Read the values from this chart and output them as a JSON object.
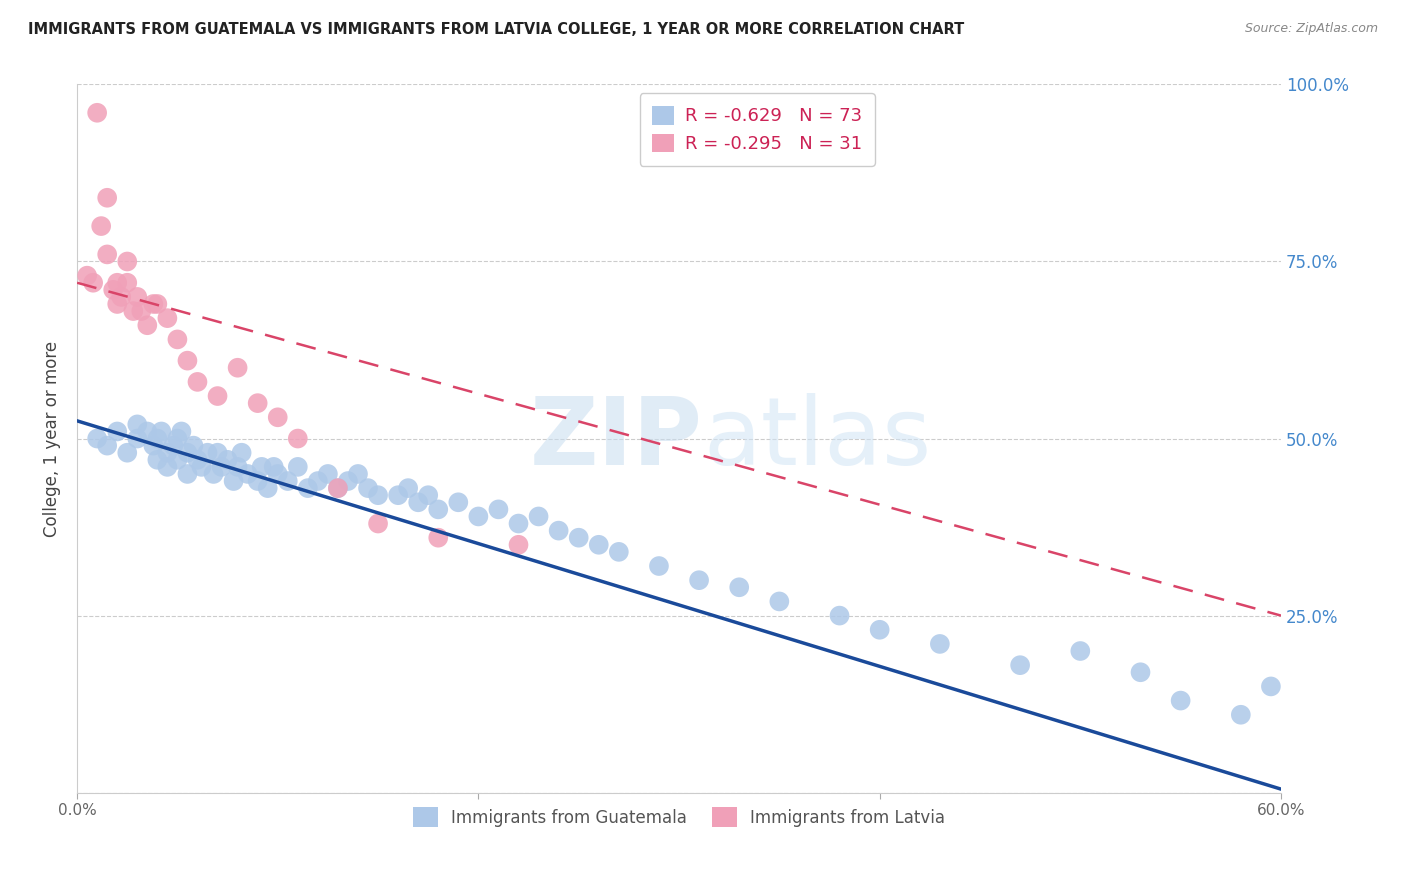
{
  "title": "IMMIGRANTS FROM GUATEMALA VS IMMIGRANTS FROM LATVIA COLLEGE, 1 YEAR OR MORE CORRELATION CHART",
  "source": "Source: ZipAtlas.com",
  "ylabel": "College, 1 year or more",
  "xlim": [
    0.0,
    0.6
  ],
  "ylim": [
    0.0,
    1.0
  ],
  "xtick_labels": [
    "0.0%",
    "",
    "",
    "60.0%"
  ],
  "xtick_vals": [
    0.0,
    0.2,
    0.4,
    0.6
  ],
  "ytick_vals": [
    0.0,
    0.25,
    0.5,
    0.75,
    1.0
  ],
  "ytick_labels_right": [
    "",
    "25.0%",
    "50.0%",
    "75.0%",
    "100.0%"
  ],
  "guatemala_color": "#adc8e8",
  "latvia_color": "#f0a0b8",
  "guatemala_line_color": "#1a4a9a",
  "latvia_line_color": "#d94468",
  "legend_R_guatemala": "-0.629",
  "legend_N_guatemala": "73",
  "legend_R_latvia": "-0.295",
  "legend_N_latvia": "31",
  "watermark_zip": "ZIP",
  "watermark_atlas": "atlas",
  "guatemala_x": [
    0.01,
    0.015,
    0.02,
    0.025,
    0.03,
    0.03,
    0.035,
    0.038,
    0.04,
    0.04,
    0.042,
    0.045,
    0.045,
    0.048,
    0.05,
    0.05,
    0.052,
    0.055,
    0.055,
    0.058,
    0.06,
    0.062,
    0.065,
    0.068,
    0.07,
    0.072,
    0.075,
    0.078,
    0.08,
    0.082,
    0.085,
    0.09,
    0.092,
    0.095,
    0.098,
    0.1,
    0.105,
    0.11,
    0.115,
    0.12,
    0.125,
    0.13,
    0.135,
    0.14,
    0.145,
    0.15,
    0.16,
    0.165,
    0.17,
    0.175,
    0.18,
    0.19,
    0.2,
    0.21,
    0.22,
    0.23,
    0.24,
    0.25,
    0.26,
    0.27,
    0.29,
    0.31,
    0.33,
    0.35,
    0.38,
    0.4,
    0.43,
    0.47,
    0.5,
    0.53,
    0.55,
    0.58,
    0.595
  ],
  "guatemala_y": [
    0.5,
    0.49,
    0.51,
    0.48,
    0.5,
    0.52,
    0.51,
    0.49,
    0.47,
    0.5,
    0.51,
    0.48,
    0.46,
    0.49,
    0.5,
    0.47,
    0.51,
    0.48,
    0.45,
    0.49,
    0.47,
    0.46,
    0.48,
    0.45,
    0.48,
    0.46,
    0.47,
    0.44,
    0.46,
    0.48,
    0.45,
    0.44,
    0.46,
    0.43,
    0.46,
    0.45,
    0.44,
    0.46,
    0.43,
    0.44,
    0.45,
    0.43,
    0.44,
    0.45,
    0.43,
    0.42,
    0.42,
    0.43,
    0.41,
    0.42,
    0.4,
    0.41,
    0.39,
    0.4,
    0.38,
    0.39,
    0.37,
    0.36,
    0.35,
    0.34,
    0.32,
    0.3,
    0.29,
    0.27,
    0.25,
    0.23,
    0.21,
    0.18,
    0.2,
    0.17,
    0.13,
    0.11,
    0.15
  ],
  "latvia_x": [
    0.005,
    0.008,
    0.01,
    0.012,
    0.015,
    0.015,
    0.018,
    0.02,
    0.02,
    0.022,
    0.025,
    0.025,
    0.028,
    0.03,
    0.032,
    0.035,
    0.038,
    0.04,
    0.045,
    0.05,
    0.055,
    0.06,
    0.07,
    0.08,
    0.09,
    0.1,
    0.11,
    0.13,
    0.15,
    0.18,
    0.22
  ],
  "latvia_y": [
    0.73,
    0.72,
    0.96,
    0.8,
    0.84,
    0.76,
    0.71,
    0.72,
    0.69,
    0.7,
    0.75,
    0.72,
    0.68,
    0.7,
    0.68,
    0.66,
    0.69,
    0.69,
    0.67,
    0.64,
    0.61,
    0.58,
    0.56,
    0.6,
    0.55,
    0.53,
    0.5,
    0.43,
    0.38,
    0.36,
    0.35
  ],
  "guatemala_line_x": [
    0.0,
    0.6
  ],
  "guatemala_line_y": [
    0.525,
    0.005
  ],
  "latvia_line_x": [
    0.0,
    0.6
  ],
  "latvia_line_y": [
    0.72,
    0.25
  ]
}
